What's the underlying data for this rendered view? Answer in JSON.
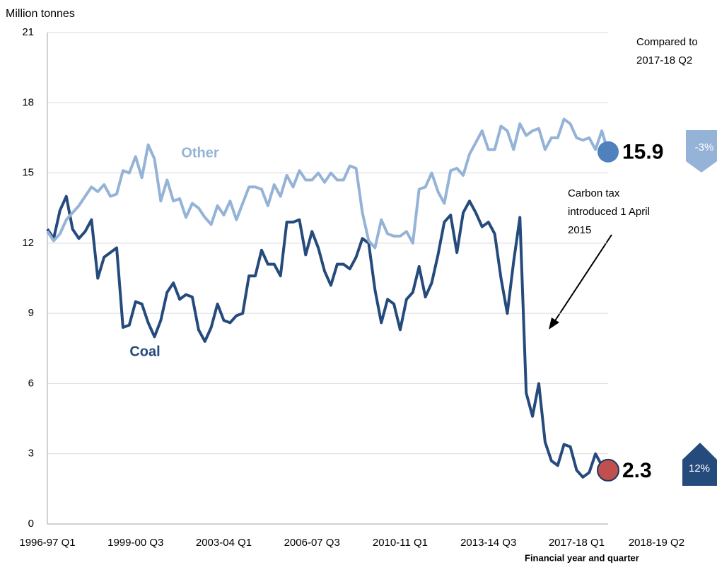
{
  "chart_data": {
    "type": "line",
    "y_axis_label": "Million tonnes",
    "x_axis_label": "Financial year and quarter",
    "categories": [
      "1996-97 Q1",
      null,
      null,
      null,
      null,
      null,
      null,
      null,
      null,
      null,
      null,
      null,
      null,
      null,
      "1999-00 Q3",
      null,
      null,
      null,
      null,
      null,
      null,
      null,
      null,
      null,
      null,
      null,
      null,
      null,
      "2003-04 Q1",
      null,
      null,
      null,
      null,
      null,
      null,
      null,
      null,
      null,
      null,
      null,
      null,
      null,
      "2006-07 Q3",
      null,
      null,
      null,
      null,
      null,
      null,
      null,
      null,
      null,
      null,
      null,
      null,
      null,
      "2010-11 Q1",
      null,
      null,
      null,
      null,
      null,
      null,
      null,
      null,
      null,
      null,
      null,
      null,
      null,
      "2013-14 Q3",
      null,
      null,
      null,
      null,
      null,
      null,
      null,
      null,
      null,
      null,
      null,
      null,
      null,
      "2017-18 Q1",
      null,
      null,
      null,
      null,
      "2018-19 Q2"
    ],
    "ylim": [
      0,
      21
    ],
    "yticks": [
      0,
      3,
      6,
      9,
      12,
      15,
      18,
      21
    ],
    "grid": true,
    "series": [
      {
        "name": "Coal",
        "color": "#254a7c",
        "marker_color": "#c0504d",
        "values": [
          12.6,
          12.2,
          13.4,
          14.0,
          12.6,
          12.2,
          12.5,
          13.0,
          10.5,
          11.4,
          11.6,
          11.8,
          8.4,
          8.5,
          9.5,
          9.4,
          8.6,
          8.0,
          8.7,
          9.9,
          10.3,
          9.6,
          9.8,
          9.7,
          8.3,
          7.8,
          8.4,
          9.4,
          8.7,
          8.6,
          8.9,
          9.0,
          10.6,
          10.6,
          11.7,
          11.1,
          11.1,
          10.6,
          12.9,
          12.9,
          13.0,
          11.5,
          12.5,
          11.8,
          10.8,
          10.2,
          11.1,
          11.1,
          10.9,
          11.4,
          12.2,
          12.0,
          10.0,
          8.6,
          9.6,
          9.4,
          8.3,
          9.6,
          9.9,
          11.0,
          9.7,
          10.3,
          11.5,
          12.9,
          13.2,
          11.6,
          13.3,
          13.8,
          13.3,
          12.7,
          12.9,
          12.4,
          10.5,
          9.0,
          11.2,
          13.1,
          5.6,
          4.6,
          6.0,
          3.5,
          2.7,
          2.5,
          3.4,
          3.3,
          2.3,
          2.0,
          2.2,
          3.0,
          2.5,
          2.3
        ],
        "change": "12%"
      },
      {
        "name": "Other",
        "color": "#95b3d7",
        "marker_color": "#4f81bd",
        "values": [
          12.5,
          12.1,
          12.4,
          13.0,
          13.3,
          13.6,
          14.0,
          14.4,
          14.2,
          14.5,
          14.0,
          14.1,
          15.1,
          15.0,
          15.7,
          14.8,
          16.2,
          15.6,
          13.8,
          14.7,
          13.8,
          13.9,
          13.1,
          13.7,
          13.5,
          13.1,
          12.8,
          13.6,
          13.2,
          13.8,
          13.0,
          13.7,
          14.4,
          14.4,
          14.3,
          13.6,
          14.5,
          14.0,
          14.9,
          14.4,
          15.1,
          14.7,
          14.7,
          15.0,
          14.6,
          15.0,
          14.7,
          14.7,
          15.3,
          15.2,
          13.3,
          12.1,
          11.8,
          13.0,
          12.4,
          12.3,
          12.3,
          12.5,
          12.0,
          14.3,
          14.4,
          15.0,
          14.2,
          13.7,
          15.1,
          15.2,
          14.9,
          15.8,
          16.3,
          16.8,
          16.0,
          16.0,
          17.0,
          16.8,
          16.0,
          17.1,
          16.6,
          16.8,
          16.9,
          16.0,
          16.5,
          16.5,
          17.3,
          17.1,
          16.5,
          16.4,
          16.5,
          16.0,
          16.8,
          15.9
        ],
        "change": "-3%"
      }
    ],
    "comparison_note": [
      "Compared to",
      "2017-18 Q2"
    ],
    "annotation": [
      "Carbon tax",
      "introduced  1 April",
      "2015"
    ]
  }
}
